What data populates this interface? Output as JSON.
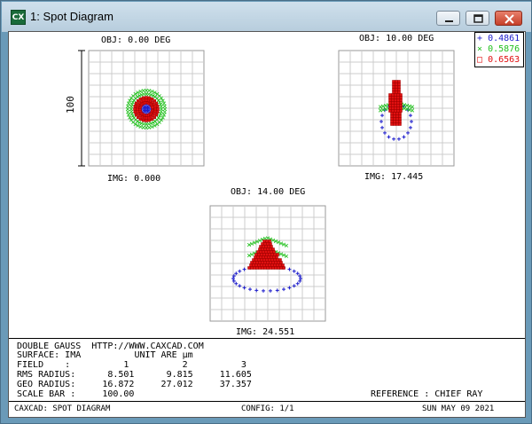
{
  "window": {
    "icon_text": "CX",
    "title": "1: Spot Diagram"
  },
  "legend": [
    {
      "symbol": "+",
      "wavelength": "0.4861",
      "color": "#1c1ccc"
    },
    {
      "symbol": "×",
      "wavelength": "0.5876",
      "color": "#22c01e"
    },
    {
      "symbol": "□",
      "wavelength": "0.6563",
      "color": "#e01010"
    }
  ],
  "plots": [
    {
      "obj": "OBJ: 0.00 DEG",
      "img": "IMG: 0.000",
      "scale_label": "100"
    },
    {
      "obj": "OBJ: 10.00 DEG",
      "img": "IMG: 17.445"
    },
    {
      "obj": "OBJ: 14.00 DEG",
      "img": "IMG: 24.551"
    }
  ],
  "info": {
    "line1": "DOUBLE GAUSS  HTTP://WWW.CAXCAD.COM",
    "line2": "SURFACE: IMA          UNIT ARE µm",
    "line3": "FIELD    :          1          2          3",
    "line4": "RMS RADIUS:      8.501      9.815     11.605",
    "line5": "GEO RADIUS:     16.872     27.012     37.357",
    "line6": "SCALE BAR :     100.00",
    "reference": "REFERENCE : CHIEF RAY"
  },
  "status": {
    "left": "CAXCAD: SPOT DIAGRAM",
    "center": "CONFIG: 1/1",
    "right": "SUN MAY 09 2021"
  }
}
